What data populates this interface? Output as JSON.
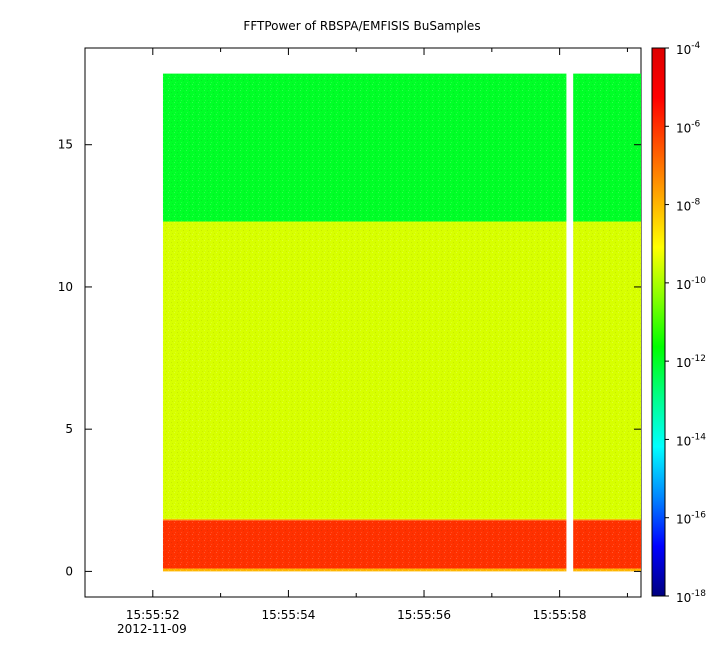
{
  "chart_data": {
    "type": "heatmap",
    "title": "FFTPower of RBSPA/EMFISIS  BuSamples",
    "xlabel": "",
    "ylabel": "",
    "x": {
      "range": [
        "15:55:51",
        "15:55:59.2"
      ],
      "data_start": "15:55:52.15",
      "data_end": "15:55:59.2",
      "ticks": [
        {
          "t": "15:55:52",
          "label": "15:55:52"
        },
        {
          "t": "15:55:54",
          "label": "15:55:54"
        },
        {
          "t": "15:55:56",
          "label": "15:55:56"
        },
        {
          "t": "15:55:58",
          "label": "15:55:58"
        }
      ],
      "minor_ticks": [
        "15:55:53",
        "15:55:55",
        "15:55:57",
        "15:55:59"
      ],
      "date_label": "2012-11-09"
    },
    "y": {
      "range": [
        -0.9,
        18.4
      ],
      "data_range": [
        0,
        17.5
      ],
      "ticks": [
        0,
        5,
        10,
        15
      ]
    },
    "colorbar": {
      "scale": "log",
      "range": [
        1e-18,
        0.0001
      ],
      "ticks": [
        {
          "value": 0.0001,
          "base": "10",
          "exp": "-4"
        },
        {
          "value": 1e-06,
          "base": "10",
          "exp": "-6"
        },
        {
          "value": 1e-08,
          "base": "10",
          "exp": "-8"
        },
        {
          "value": 1e-10,
          "base": "10",
          "exp": "-10"
        },
        {
          "value": 1e-12,
          "base": "10",
          "exp": "-12"
        },
        {
          "value": 1e-14,
          "base": "10",
          "exp": "-14"
        },
        {
          "value": 1e-16,
          "base": "10",
          "exp": "-16"
        },
        {
          "value": 1e-18,
          "base": "10",
          "exp": "-18"
        }
      ],
      "colors": [
        "#00007f",
        "#0000ff",
        "#0088ff",
        "#00ffff",
        "#00ff88",
        "#00ff00",
        "#88ff00",
        "#ffff00",
        "#ffaa00",
        "#ff5500",
        "#ff0000",
        "#dd0000"
      ]
    },
    "bands": [
      {
        "y_from": 0,
        "y_to": 0.1,
        "level": 1e-08
      },
      {
        "y_from": 0.1,
        "y_to": 1.8,
        "level": 1e-06
      },
      {
        "y_from": 1.8,
        "y_to": 1.85,
        "level": 1e-08
      },
      {
        "y_from": 1.85,
        "y_to": 12.3,
        "level": 3e-10
      },
      {
        "y_from": 12.3,
        "y_to": 17.5,
        "level": 1e-12
      }
    ],
    "gaps": [
      {
        "t_from": "15:55:58.1",
        "t_to": "15:55:58.2"
      }
    ],
    "grid": false
  }
}
